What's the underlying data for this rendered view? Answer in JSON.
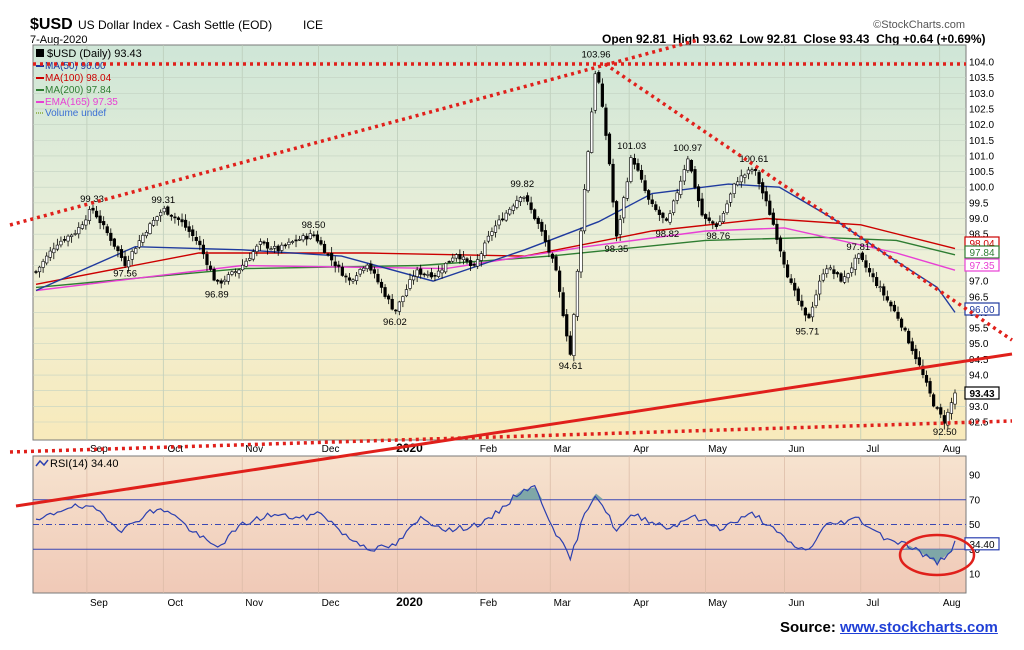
{
  "header": {
    "symbol": "$USD",
    "name": "US Dollar Index - Cash Settle (EOD)",
    "exchange": "ICE",
    "date": "7-Aug-2020",
    "ohlc": "Open 92.81  High 93.62  Low 92.81  Close 93.43  Chg +0.64 (+0.69%)",
    "copyright": "©StockCharts.com"
  },
  "legend": {
    "price": "$USD (Daily) 93.43",
    "ma50": "MA(50) 96.00",
    "ma100": "MA(100) 98.04",
    "ma200": "MA(200) 97.84",
    "ema165": "EMA(165) 97.35",
    "volume": "Volume undef"
  },
  "source": {
    "label": "Source:",
    "link": "www.stockcharts.com"
  },
  "colors": {
    "ma50": "#1f3a9e",
    "ma100": "#cc0000",
    "ma200": "#2e7d32",
    "ema165": "#e83fd4",
    "trend": "#e0201b",
    "candle": "#000000",
    "rsi": "#2b3fb0"
  },
  "chart_data": [
    {
      "type": "candlestick",
      "title": "$USD (Daily) 93.43",
      "ylim": [
        92.4,
        104.2
      ],
      "y_ticks": [
        "104.0",
        "103.5",
        "103.0",
        "102.5",
        "102.0",
        "101.5",
        "101.0",
        "100.5",
        "100.0",
        "99.5",
        "99.0",
        "98.5",
        "98.0",
        "97.5",
        "97.0",
        "96.5",
        "96.0",
        "95.5",
        "95.0",
        "94.5",
        "94.0",
        "93.5",
        "93.0",
        "92.5"
      ],
      "x_labels": [
        "Sep",
        "Oct",
        "Nov",
        "Dec",
        "2020",
        "Feb",
        "Mar",
        "Apr",
        "May",
        "Jun",
        "Jul",
        "Aug"
      ],
      "grid": true,
      "close_path": [
        [
          "2019-08-12",
          97.3
        ],
        [
          "2019-08-20",
          98.2
        ],
        [
          "2019-08-28",
          98.6
        ],
        [
          "2019-09-03",
          99.33
        ],
        [
          "2019-09-10",
          98.4
        ],
        [
          "2019-09-16",
          97.56
        ],
        [
          "2019-09-24",
          98.6
        ],
        [
          "2019-10-01",
          99.31
        ],
        [
          "2019-10-08",
          98.9
        ],
        [
          "2019-10-15",
          98.2
        ],
        [
          "2019-10-22",
          96.89
        ],
        [
          "2019-10-31",
          97.4
        ],
        [
          "2019-11-08",
          98.2
        ],
        [
          "2019-11-15",
          98.0
        ],
        [
          "2019-11-22",
          98.3
        ],
        [
          "2019-11-29",
          98.5
        ],
        [
          "2019-12-06",
          97.7
        ],
        [
          "2019-12-13",
          97.0
        ],
        [
          "2019-12-20",
          97.6
        ],
        [
          "2019-12-31",
          96.02
        ],
        [
          "2020-01-08",
          97.3
        ],
        [
          "2020-01-16",
          97.2
        ],
        [
          "2020-01-24",
          97.9
        ],
        [
          "2020-01-31",
          97.4
        ],
        [
          "2020-02-07",
          98.6
        ],
        [
          "2020-02-19",
          99.82
        ],
        [
          "2020-02-26",
          98.7
        ],
        [
          "2020-03-03",
          97.4
        ],
        [
          "2020-03-09",
          94.61
        ],
        [
          "2020-03-13",
          98.6
        ],
        [
          "2020-03-19",
          103.96
        ],
        [
          "2020-03-24",
          101.0
        ],
        [
          "2020-03-27",
          98.35
        ],
        [
          "2020-04-02",
          101.03
        ],
        [
          "2020-04-09",
          99.5
        ],
        [
          "2020-04-16",
          98.82
        ],
        [
          "2020-04-24",
          100.97
        ],
        [
          "2020-04-30",
          99.0
        ],
        [
          "2020-05-06",
          98.76
        ],
        [
          "2020-05-13",
          100.2
        ],
        [
          "2020-05-20",
          100.61
        ],
        [
          "2020-05-27",
          99.0
        ],
        [
          "2020-06-03",
          97.0
        ],
        [
          "2020-06-10",
          95.71
        ],
        [
          "2020-06-17",
          97.5
        ],
        [
          "2020-06-24",
          97.0
        ],
        [
          "2020-06-30",
          97.81
        ],
        [
          "2020-07-09",
          96.7
        ],
        [
          "2020-07-16",
          95.8
        ],
        [
          "2020-07-23",
          94.5
        ],
        [
          "2020-07-30",
          93.0
        ],
        [
          "2020-08-03",
          92.5
        ],
        [
          "2020-08-07",
          93.43
        ]
      ],
      "annotations": [
        [
          "2019-09-03",
          99.33,
          "99.33"
        ],
        [
          "2019-09-16",
          97.56,
          "97.56"
        ],
        [
          "2019-10-01",
          99.31,
          "99.31"
        ],
        [
          "2019-10-22",
          96.89,
          "96.89"
        ],
        [
          "2019-11-29",
          98.5,
          "98.50"
        ],
        [
          "2019-12-31",
          96.02,
          "96.02"
        ],
        [
          "2020-02-19",
          99.82,
          "99.82"
        ],
        [
          "2020-03-09",
          94.61,
          "94.61"
        ],
        [
          "2020-03-19",
          103.96,
          "103.96"
        ],
        [
          "2020-03-27",
          98.35,
          "98.35"
        ],
        [
          "2020-04-02",
          101.03,
          "101.03"
        ],
        [
          "2020-04-16",
          98.82,
          "98.82"
        ],
        [
          "2020-04-24",
          100.97,
          "100.97"
        ],
        [
          "2020-05-06",
          98.76,
          "98.76"
        ],
        [
          "2020-05-20",
          100.61,
          "100.61"
        ],
        [
          "2020-06-10",
          95.71,
          "95.71"
        ],
        [
          "2020-06-30",
          97.81,
          "97.81"
        ],
        [
          "2020-08-03",
          92.5,
          "92.50"
        ]
      ],
      "ma50": [
        [
          "2019-08-12",
          96.7
        ],
        [
          "2019-09-20",
          98.1
        ],
        [
          "2019-11-01",
          98.0
        ],
        [
          "2019-12-10",
          97.8
        ],
        [
          "2020-01-15",
          97.0
        ],
        [
          "2020-02-20",
          98.0
        ],
        [
          "2020-03-20",
          98.9
        ],
        [
          "2020-04-10",
          99.8
        ],
        [
          "2020-05-10",
          100.1
        ],
        [
          "2020-05-30",
          100.0
        ],
        [
          "2020-06-20",
          99.0
        ],
        [
          "2020-07-10",
          97.9
        ],
        [
          "2020-07-31",
          96.8
        ],
        [
          "2020-08-07",
          96.0
        ]
      ],
      "ma100": [
        [
          "2019-08-12",
          96.9
        ],
        [
          "2019-10-15",
          97.9
        ],
        [
          "2019-12-20",
          97.9
        ],
        [
          "2020-02-20",
          97.8
        ],
        [
          "2020-04-10",
          98.6
        ],
        [
          "2020-05-25",
          99.0
        ],
        [
          "2020-07-01",
          98.8
        ],
        [
          "2020-08-07",
          98.04
        ]
      ],
      "ma200": [
        [
          "2019-08-12",
          96.8
        ],
        [
          "2019-11-01",
          97.4
        ],
        [
          "2020-01-10",
          97.5
        ],
        [
          "2020-03-01",
          97.8
        ],
        [
          "2020-05-01",
          98.3
        ],
        [
          "2020-06-15",
          98.4
        ],
        [
          "2020-07-15",
          98.3
        ],
        [
          "2020-08-07",
          97.84
        ]
      ],
      "ema165": [
        [
          "2019-08-12",
          96.7
        ],
        [
          "2019-11-01",
          97.5
        ],
        [
          "2020-01-20",
          97.4
        ],
        [
          "2020-03-15",
          98.1
        ],
        [
          "2020-05-01",
          98.6
        ],
        [
          "2020-06-01",
          98.7
        ],
        [
          "2020-07-15",
          97.9
        ],
        [
          "2020-08-07",
          97.35
        ]
      ],
      "last_value_tags": [
        [
          "98.04",
          "ma100"
        ],
        [
          "97.84",
          "ma200"
        ],
        [
          "97.35",
          "ema165"
        ],
        [
          "96.00",
          "ma50"
        ],
        [
          "93.43",
          "candle"
        ]
      ]
    },
    {
      "type": "line",
      "title": "RSI(14) 34.40",
      "ylim": [
        0,
        100
      ],
      "y_ticks": [
        "90",
        "70",
        "50",
        "30",
        "10"
      ],
      "reference_lines": [
        70,
        50,
        30
      ],
      "x_labels": [
        "Sep",
        "Oct",
        "Nov",
        "Dec",
        "2020",
        "Feb",
        "Mar",
        "Apr",
        "May",
        "Jun",
        "Jul",
        "Aug"
      ],
      "values": [
        [
          "2019-08-12",
          52
        ],
        [
          "2019-08-25",
          65
        ],
        [
          "2019-09-05",
          62
        ],
        [
          "2019-09-15",
          45
        ],
        [
          "2019-09-25",
          60
        ],
        [
          "2019-10-03",
          62
        ],
        [
          "2019-10-12",
          45
        ],
        [
          "2019-10-22",
          31
        ],
        [
          "2019-11-01",
          50
        ],
        [
          "2019-11-12",
          58
        ],
        [
          "2019-11-25",
          55
        ],
        [
          "2019-12-02",
          60
        ],
        [
          "2019-12-12",
          40
        ],
        [
          "2019-12-22",
          30
        ],
        [
          "2019-12-31",
          33
        ],
        [
          "2020-01-10",
          55
        ],
        [
          "2020-01-22",
          45
        ],
        [
          "2020-02-05",
          52
        ],
        [
          "2020-02-19",
          78
        ],
        [
          "2020-02-24",
          80
        ],
        [
          "2020-03-04",
          40
        ],
        [
          "2020-03-09",
          22
        ],
        [
          "2020-03-15",
          62
        ],
        [
          "2020-03-19",
          75
        ],
        [
          "2020-03-27",
          45
        ],
        [
          "2020-04-03",
          58
        ],
        [
          "2020-04-17",
          47
        ],
        [
          "2020-04-25",
          57
        ],
        [
          "2020-05-07",
          47
        ],
        [
          "2020-05-20",
          59
        ],
        [
          "2020-06-03",
          35
        ],
        [
          "2020-06-10",
          28
        ],
        [
          "2020-06-17",
          49
        ],
        [
          "2020-06-30",
          55
        ],
        [
          "2020-07-10",
          40
        ],
        [
          "2020-07-20",
          33
        ],
        [
          "2020-07-27",
          24
        ],
        [
          "2020-07-31",
          19
        ],
        [
          "2020-08-04",
          26
        ],
        [
          "2020-08-07",
          34.4
        ]
      ],
      "last_value_tag": "34.40"
    }
  ]
}
